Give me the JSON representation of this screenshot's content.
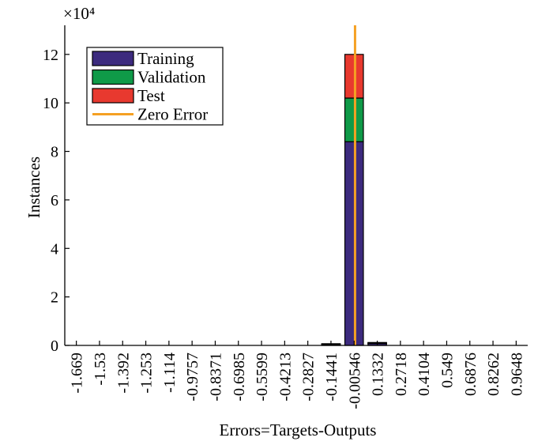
{
  "chart_data": {
    "type": "bar",
    "stacked": true,
    "title": "",
    "xlabel": "Errors=Targets-Outputs",
    "ylabel": "Instances",
    "y_multiplier": "×10⁴",
    "ylim": [
      0,
      13.2
    ],
    "yticks": [
      0,
      2,
      4,
      6,
      8,
      10,
      12
    ],
    "categories": [
      "-1.669",
      "-1.53",
      "-1.392",
      "-1.253",
      "-1.114",
      "-0.9757",
      "-0.8371",
      "-0.6985",
      "-0.5599",
      "-0.4213",
      "-0.2827",
      "-0.1441",
      "-0.00546",
      "0.1332",
      "0.2718",
      "0.4104",
      "0.549",
      "0.6876",
      "0.8262",
      "0.9648"
    ],
    "series": [
      {
        "name": "Training",
        "color": "#3c2a7e",
        "values": [
          0,
          0,
          0,
          0,
          0,
          0,
          0,
          0,
          0,
          0,
          0,
          0.05,
          8.4,
          0.08,
          0,
          0,
          0,
          0,
          0,
          0
        ]
      },
      {
        "name": "Validation",
        "color": "#0f9a48",
        "values": [
          0,
          0,
          0,
          0,
          0,
          0,
          0,
          0,
          0,
          0,
          0,
          0.01,
          1.8,
          0.02,
          0,
          0,
          0,
          0,
          0,
          0
        ]
      },
      {
        "name": "Test",
        "color": "#e8392f",
        "values": [
          0,
          0,
          0,
          0,
          0,
          0,
          0,
          0,
          0,
          0,
          0,
          0.01,
          1.8,
          0.02,
          0,
          0,
          0,
          0,
          0,
          0
        ]
      }
    ],
    "zero_error": {
      "name": "Zero Error",
      "color": "#f5a023",
      "x_category_offset": 0.04
    },
    "legend": [
      "Training",
      "Validation",
      "Test",
      "Zero Error"
    ],
    "legend_position": "top-left",
    "grid": false
  }
}
